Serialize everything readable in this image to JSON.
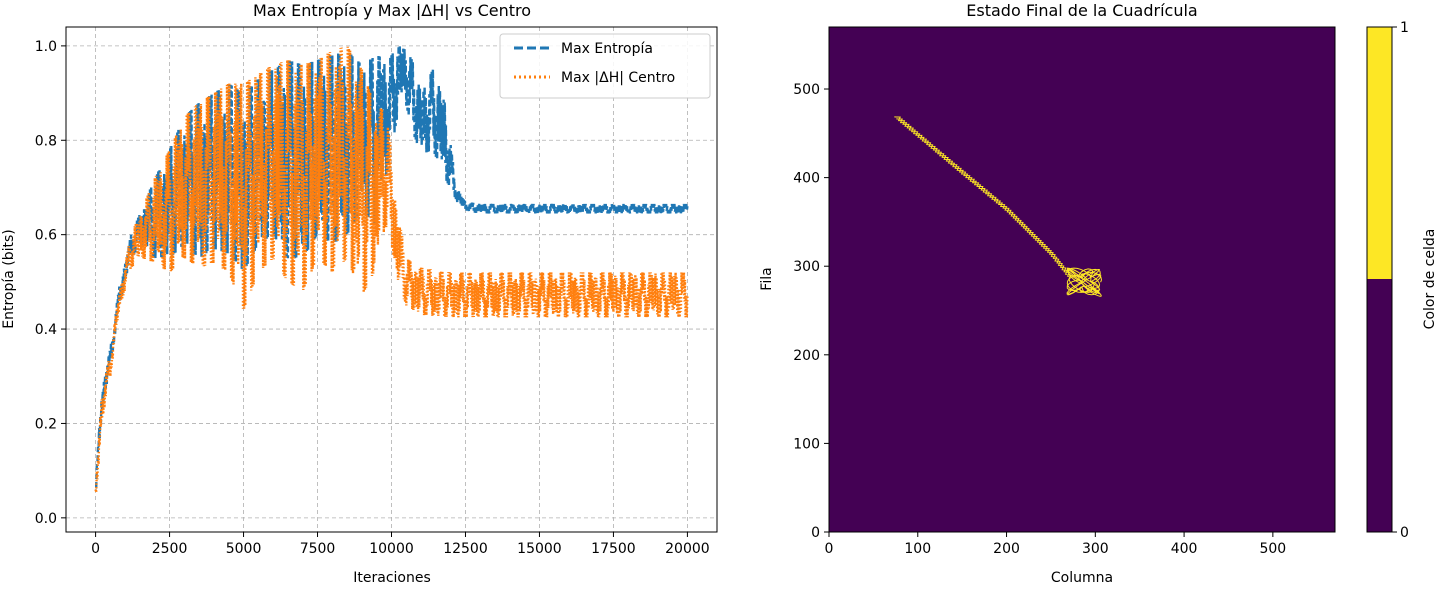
{
  "chart_data": [
    {
      "type": "line",
      "title": "Max Entropía y Max |ΔH| vs Centro",
      "xlabel": "Iteraciones",
      "ylabel": "Entropía (bits)",
      "xlim": [
        -1000,
        21000
      ],
      "ylim": [
        -0.03,
        1.04
      ],
      "x_ticks": [
        0,
        2500,
        5000,
        7500,
        10000,
        12500,
        15000,
        17500,
        20000
      ],
      "x_tick_labels": [
        "0",
        "2500",
        "5000",
        "7500",
        "10000",
        "12500",
        "15000",
        "17500",
        "20000"
      ],
      "y_ticks": [
        0.0,
        0.2,
        0.4,
        0.6,
        0.8,
        1.0
      ],
      "y_tick_labels": [
        "0.0",
        "0.2",
        "0.4",
        "0.6",
        "0.8",
        "1.0"
      ],
      "grid": true,
      "legend_position": "top-right",
      "series": [
        {
          "name": "Max Entropía",
          "color": "#1f77b4",
          "style": "dashed",
          "x": [
            0,
            200,
            500,
            800,
            1200,
            1600,
            2000,
            2500,
            3000,
            3500,
            4000,
            4500,
            5000,
            5500,
            6000,
            6500,
            7000,
            7500,
            8000,
            8500,
            9000,
            9500,
            9900,
            10200,
            10400,
            10700,
            11000,
            11400,
            11800,
            12200,
            12500,
            13000,
            14000,
            15000,
            16000,
            17000,
            18000,
            19000,
            20000
          ],
          "y_low": [
            0.03,
            0.22,
            0.32,
            0.45,
            0.55,
            0.58,
            0.55,
            0.55,
            0.58,
            0.55,
            0.57,
            0.56,
            0.52,
            0.58,
            0.6,
            0.55,
            0.55,
            0.6,
            0.58,
            0.6,
            0.65,
            0.62,
            0.75,
            0.85,
            0.9,
            0.82,
            0.77,
            0.78,
            0.72,
            0.67,
            0.65,
            0.645,
            0.645,
            0.645,
            0.645,
            0.645,
            0.645,
            0.645,
            0.645
          ],
          "y_high": [
            0.07,
            0.27,
            0.36,
            0.49,
            0.6,
            0.66,
            0.72,
            0.78,
            0.85,
            0.88,
            0.9,
            0.92,
            0.9,
            0.93,
            0.95,
            0.97,
            0.96,
            0.97,
            0.98,
            0.99,
            0.96,
            0.98,
            0.97,
            1.0,
            1.0,
            0.97,
            0.9,
            0.95,
            0.88,
            0.7,
            0.67,
            0.665,
            0.665,
            0.665,
            0.665,
            0.665,
            0.665,
            0.665,
            0.665
          ]
        },
        {
          "name": "Max |ΔH| Centro",
          "color": "#ff7f0e",
          "style": "dotted",
          "x": [
            0,
            200,
            500,
            800,
            1200,
            1600,
            2000,
            2500,
            3000,
            3500,
            4000,
            4500,
            5000,
            5500,
            6000,
            6500,
            7000,
            7500,
            8000,
            8500,
            9000,
            9400,
            9800,
            10000,
            10200,
            10500,
            11000,
            12000,
            13000,
            14000,
            15000,
            16000,
            17000,
            18000,
            19000,
            20000
          ],
          "y_low": [
            0.02,
            0.2,
            0.3,
            0.44,
            0.53,
            0.55,
            0.54,
            0.52,
            0.55,
            0.53,
            0.54,
            0.52,
            0.44,
            0.52,
            0.55,
            0.5,
            0.48,
            0.55,
            0.52,
            0.55,
            0.47,
            0.52,
            0.62,
            0.58,
            0.5,
            0.45,
            0.43,
            0.425,
            0.425,
            0.425,
            0.425,
            0.425,
            0.425,
            0.425,
            0.425,
            0.425
          ],
          "y_high": [
            0.06,
            0.26,
            0.35,
            0.48,
            0.6,
            0.66,
            0.72,
            0.78,
            0.85,
            0.88,
            0.9,
            0.92,
            0.92,
            0.94,
            0.96,
            0.97,
            0.96,
            0.97,
            0.99,
            1.0,
            0.95,
            0.88,
            0.86,
            0.78,
            0.65,
            0.55,
            0.53,
            0.52,
            0.52,
            0.52,
            0.52,
            0.52,
            0.52,
            0.52,
            0.52,
            0.52
          ]
        }
      ]
    },
    {
      "type": "heatmap",
      "title": "Estado Final de la Cuadrícula",
      "xlabel": "Columna",
      "ylabel": "Fila",
      "xlim": [
        0,
        570
      ],
      "ylim": [
        0,
        570
      ],
      "x_ticks": [
        0,
        100,
        200,
        300,
        400,
        500
      ],
      "x_tick_labels": [
        "0",
        "100",
        "200",
        "300",
        "400",
        "500"
      ],
      "y_ticks": [
        0,
        100,
        200,
        300,
        400,
        500
      ],
      "y_tick_labels": [
        "0",
        "100",
        "200",
        "300",
        "400",
        "500"
      ],
      "background_value": 0,
      "background_color": "#440154",
      "active_value": 1,
      "active_color": "#fde725",
      "trail_path": [
        [
          75,
          470
        ],
        [
          140,
          415
        ],
        [
          200,
          365
        ],
        [
          250,
          315
        ],
        [
          270,
          290
        ]
      ],
      "cluster": {
        "center": [
          288,
          282
        ],
        "radius": 20
      },
      "colorbar": {
        "label": "Color de celda",
        "ticks": [
          0,
          1
        ],
        "tick_labels": [
          "0",
          "1"
        ],
        "threshold": 0.5
      }
    }
  ]
}
